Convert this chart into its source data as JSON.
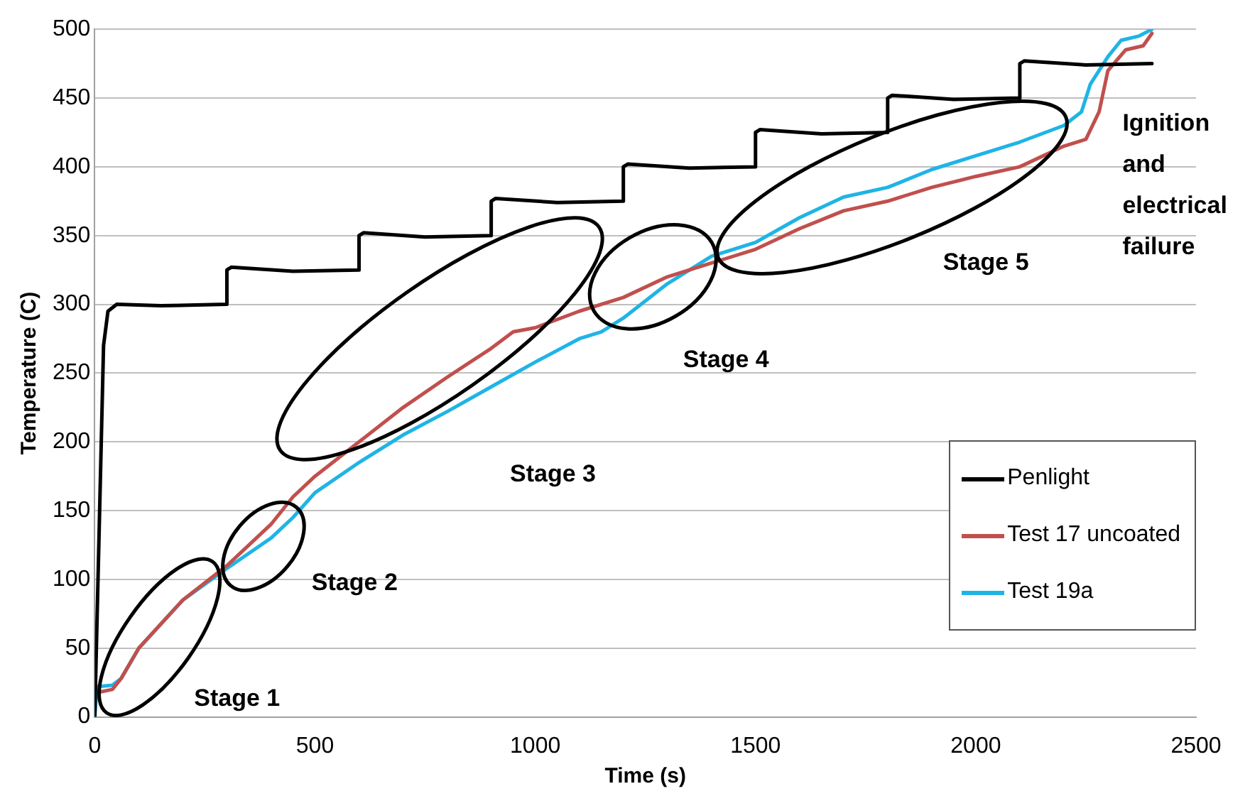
{
  "chart_data": {
    "type": "line",
    "xlabel": "Time (s)",
    "ylabel": "Temperature (C)",
    "xlim": [
      0,
      2500
    ],
    "xticks": [
      0,
      500,
      1000,
      1500,
      2000,
      2500
    ],
    "ylim": [
      0,
      500
    ],
    "yticks": [
      0,
      50,
      100,
      150,
      200,
      250,
      300,
      350,
      400,
      450,
      500
    ],
    "grid": "y",
    "legend": "bottom right",
    "marker": "none",
    "line_style": "solid",
    "series": [
      {
        "name": "Penlight",
        "color": "#000000",
        "x": [
          0,
          20,
          30,
          50,
          150,
          299,
          300,
          310,
          450,
          599,
          600,
          610,
          750,
          899,
          900,
          910,
          1050,
          1199,
          1200,
          1210,
          1350,
          1499,
          1500,
          1510,
          1650,
          1799,
          1800,
          1810,
          1950,
          2099,
          2100,
          2110,
          2250,
          2400
        ],
        "values": [
          0,
          270,
          295,
          300,
          299,
          300,
          325,
          327,
          324,
          325,
          350,
          352,
          349,
          350,
          375,
          377,
          374,
          375,
          400,
          402,
          399,
          400,
          425,
          427,
          424,
          425,
          450,
          452,
          449,
          450,
          475,
          477,
          474,
          475
        ]
      },
      {
        "name": "Test 17 uncoated",
        "color": "#c0504d",
        "x": [
          10,
          40,
          60,
          100,
          200,
          300,
          400,
          450,
          500,
          600,
          700,
          800,
          900,
          950,
          1000,
          1100,
          1200,
          1300,
          1400,
          1500,
          1600,
          1700,
          1800,
          1900,
          2000,
          2100,
          2200,
          2250,
          2280,
          2300,
          2340,
          2380,
          2400
        ],
        "values": [
          18,
          20,
          28,
          50,
          85,
          110,
          140,
          160,
          175,
          200,
          225,
          247,
          268,
          280,
          283,
          295,
          305,
          320,
          330,
          340,
          355,
          368,
          375,
          385,
          393,
          400,
          415,
          420,
          440,
          470,
          485,
          488,
          497
        ]
      },
      {
        "name": "Test 19a",
        "color": "#1fb4e6",
        "x": [
          0,
          5,
          40,
          60,
          100,
          200,
          300,
          400,
          450,
          500,
          600,
          700,
          800,
          900,
          1000,
          1100,
          1150,
          1200,
          1300,
          1400,
          1500,
          1600,
          1700,
          1800,
          1900,
          2000,
          2100,
          2200,
          2240,
          2260,
          2300,
          2330,
          2370,
          2400
        ],
        "values": [
          0,
          22,
          23,
          28,
          50,
          85,
          108,
          130,
          145,
          163,
          185,
          205,
          222,
          240,
          258,
          275,
          280,
          290,
          315,
          335,
          345,
          363,
          378,
          385,
          398,
          408,
          418,
          430,
          440,
          460,
          480,
          492,
          495,
          500
        ]
      }
    ],
    "annotations": [
      "Stage 1",
      "Stage 2",
      "Stage 3",
      "Stage 4",
      "Stage 5",
      "Ignition and electrical failure"
    ]
  }
}
